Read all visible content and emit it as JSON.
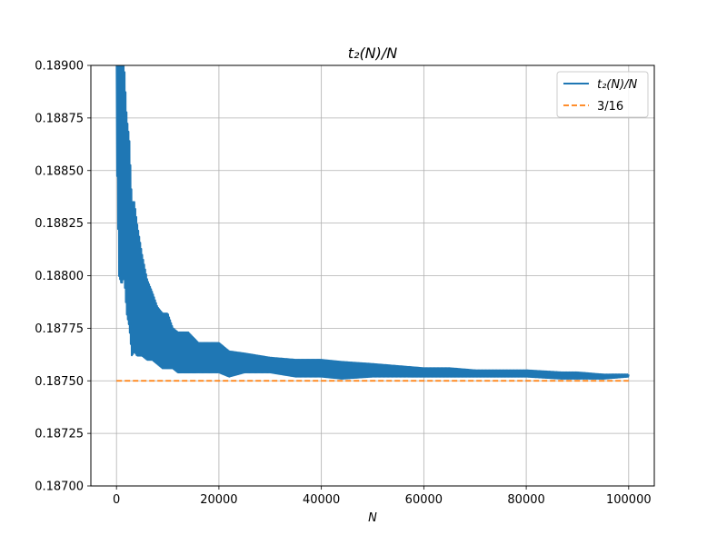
{
  "chart_data": {
    "type": "line",
    "title": "t₂(N)/N",
    "xlabel": "N",
    "ylabel": "",
    "xlim": [
      -5000,
      105000
    ],
    "ylim": [
      0.187,
      0.189
    ],
    "grid": true,
    "legend_position": "top-right",
    "x_ticks": [
      0,
      20000,
      40000,
      60000,
      80000,
      100000
    ],
    "x_tick_labels": [
      "0",
      "20000",
      "40000",
      "60000",
      "80000",
      "100000"
    ],
    "y_ticks": [
      0.187,
      0.18725,
      0.1875,
      0.18775,
      0.188,
      0.18825,
      0.1885,
      0.18875,
      0.189
    ],
    "y_tick_labels": [
      "0.18700",
      "0.18725",
      "0.18750",
      "0.18775",
      "0.18800",
      "0.18825",
      "0.18850",
      "0.18875",
      "0.18900"
    ],
    "series": [
      {
        "name": "t₂(N)/N",
        "color": "#1f77b4",
        "style": "solid",
        "envelope": {
          "x": [
            50,
            500,
            1000,
            1500,
            2000,
            2500,
            3000,
            3500,
            4000,
            5000,
            6000,
            7000,
            8000,
            9000,
            10000,
            11000,
            12000,
            14000,
            16000,
            18000,
            20000,
            22000,
            25000,
            30000,
            35000,
            40000,
            44000,
            50000,
            55000,
            60000,
            65000,
            70000,
            75000,
            80000,
            87000,
            90000,
            95000,
            100000
          ],
          "upper": [
            0.189,
            0.189,
            0.189,
            0.189,
            0.18875,
            0.18865,
            0.18835,
            0.18835,
            0.18825,
            0.1881,
            0.18798,
            0.18792,
            0.18785,
            0.18782,
            0.18782,
            0.18775,
            0.18773,
            0.18773,
            0.18768,
            0.18768,
            0.18768,
            0.18764,
            0.18763,
            0.18761,
            0.1876,
            0.1876,
            0.18759,
            0.18758,
            0.18757,
            0.18756,
            0.18756,
            0.18755,
            0.18755,
            0.18755,
            0.18754,
            0.18754,
            0.18753,
            0.18753
          ],
          "lower": [
            0.1886,
            0.188,
            0.18796,
            0.188,
            0.18782,
            0.18776,
            0.18762,
            0.18764,
            0.18762,
            0.18762,
            0.1876,
            0.1876,
            0.18758,
            0.18756,
            0.18756,
            0.18756,
            0.18754,
            0.18754,
            0.18754,
            0.18754,
            0.18754,
            0.18752,
            0.18754,
            0.18754,
            0.18752,
            0.18752,
            0.18751,
            0.18752,
            0.18752,
            0.18752,
            0.18752,
            0.18752,
            0.18752,
            0.18752,
            0.18751,
            0.18751,
            0.18751,
            0.18752
          ]
        }
      },
      {
        "name": "3/16",
        "color": "#ff7f0e",
        "style": "dashed",
        "x": [
          0,
          100000
        ],
        "y": [
          0.1875,
          0.1875
        ]
      }
    ]
  }
}
